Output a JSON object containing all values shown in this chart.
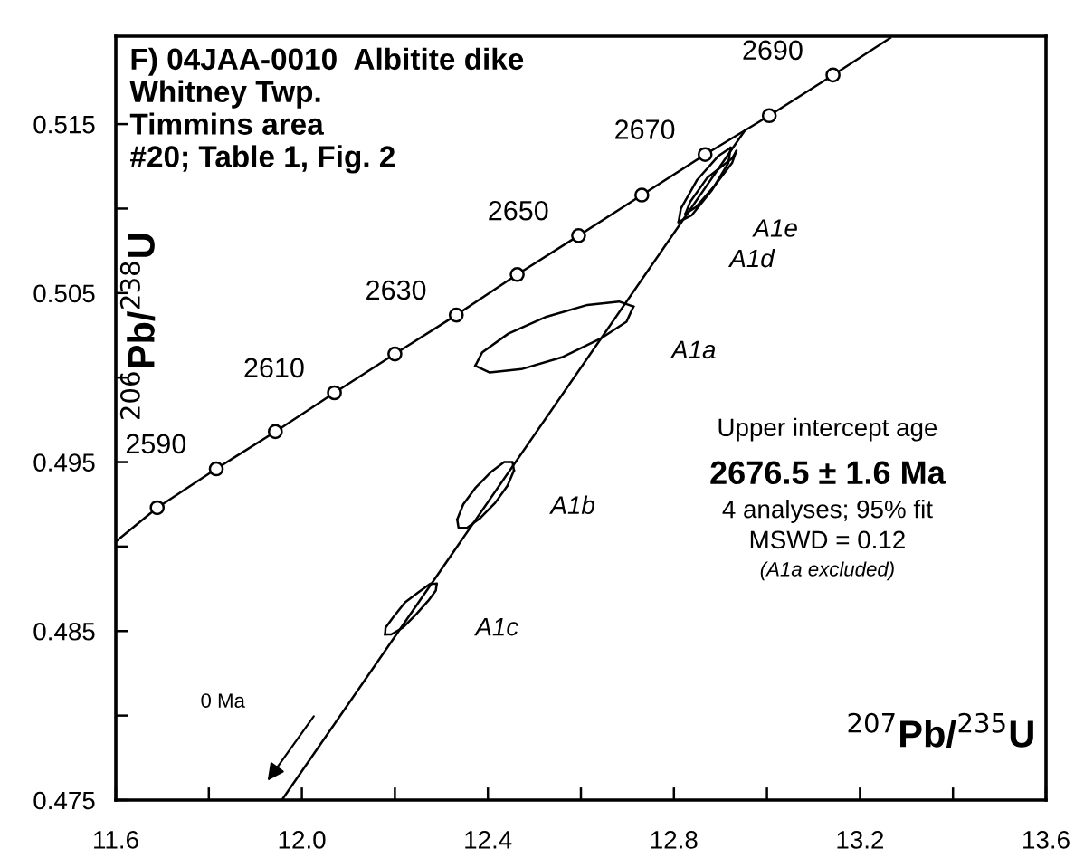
{
  "chart_data": {
    "type": "line",
    "title": "F) 04JAA-0010  Albitite dike\nWhitney Twp.\nTimmins area\n#20; Table 1, Fig. 2",
    "xlabel": "$^{207}$Pb/$^{235}$U",
    "ylabel": "$^{206}$Pb/$^{238}$U",
    "xlim": [
      11.6,
      13.6
    ],
    "ylim": [
      0.475,
      0.5202
    ],
    "xticks": [
      11.6,
      {
        "value": 11.8,
        "label": null
      },
      {
        "value": 12.0,
        "label": "12.0"
      },
      {
        "value": 12.2,
        "label": null
      },
      12.4,
      {
        "value": 12.6,
        "label": null
      },
      12.8,
      {
        "value": 13.0,
        "label": null
      },
      13.2,
      {
        "value": 13.4,
        "label": null
      },
      13.6
    ],
    "yticks": [
      0.475,
      {
        "value": 0.48,
        "label": null
      },
      0.485,
      {
        "value": 0.49,
        "label": null
      },
      0.495,
      {
        "value": 0.5,
        "label": null
      },
      0.505,
      {
        "value": 0.51,
        "label": null
      },
      0.515
    ],
    "grid": false,
    "legend": false,
    "series": [
      {
        "color": "#000000",
        "marker": "none",
        "x": [
          11.6,
          11.689,
          11.816,
          11.943,
          12.07,
          12.2,
          12.332,
          12.463,
          12.595,
          12.731,
          12.867,
          13.005,
          13.142,
          13.265
        ],
        "values": [
          0.4903,
          0.4923,
          0.4946,
          0.4968,
          0.4991,
          0.5014,
          0.5037,
          0.5061,
          0.5084,
          0.5108,
          0.5132,
          0.5155,
          0.5179,
          0.5201
        ]
      },
      {
        "type": "scatter",
        "color": "#000000",
        "marker": "circle",
        "x": [
          11.689,
          11.816,
          11.943,
          12.07,
          12.2,
          12.332,
          12.463,
          12.595,
          12.731,
          12.867,
          13.005,
          13.142
        ],
        "values": [
          0.4923,
          0.4946,
          0.4968,
          0.4991,
          0.5014,
          0.5037,
          0.5061,
          0.5084,
          0.5108,
          0.5132,
          0.5155,
          0.5179
        ]
      },
      {
        "color": "#000000",
        "marker": "none",
        "x": [
          11.957,
          12.952
        ],
        "values": [
          0.475,
          0.5146
        ]
      },
      {
        "color": "#000000",
        "marker": "none",
        "x": [
          12.373,
          12.404,
          12.472,
          12.559,
          12.642,
          12.698,
          12.713
        ],
        "values": [
          0.5007,
          0.5003,
          0.5005,
          0.5012,
          0.5023,
          0.5033,
          0.5042
        ]
      },
      {
        "color": "#000000",
        "marker": "none",
        "x": [
          12.373,
          12.388,
          12.444,
          12.526,
          12.614,
          12.682,
          12.713
        ],
        "values": [
          0.5007,
          0.5015,
          0.5026,
          0.5036,
          0.5043,
          0.5045,
          0.5042
        ]
      },
      {
        "color": "#000000",
        "marker": "none",
        "x": [
          12.334,
          12.337,
          12.355,
          12.384,
          12.416,
          12.442,
          12.456
        ],
        "values": [
          0.4916,
          0.4911,
          0.4911,
          0.4917,
          0.4926,
          0.4936,
          0.4945
        ]
      },
      {
        "color": "#000000",
        "marker": "none",
        "x": [
          12.334,
          12.347,
          12.374,
          12.406,
          12.435,
          12.453,
          12.456
        ],
        "values": [
          0.4916,
          0.4925,
          0.4935,
          0.4944,
          0.495,
          0.495,
          0.4945
        ]
      },
      {
        "color": "#000000",
        "marker": "none",
        "x": [
          12.179,
          12.192,
          12.217,
          12.246,
          12.272,
          12.288,
          12.29
        ],
        "values": [
          0.4848,
          0.4848,
          0.4852,
          0.486,
          0.4868,
          0.4874,
          0.4878
        ]
      },
      {
        "color": "#000000",
        "marker": "none",
        "x": [
          12.179,
          12.18,
          12.196,
          12.222,
          12.251,
          12.276,
          12.29
        ],
        "values": [
          0.4848,
          0.4852,
          0.4858,
          0.4867,
          0.4873,
          0.4878,
          0.4878
        ]
      },
      {
        "color": "#000000",
        "marker": "none",
        "x": [
          12.81,
          12.838,
          12.882,
          12.917,
          12.922
        ],
        "values": [
          0.5092,
          0.5096,
          0.5111,
          0.5127,
          0.5136
        ]
      },
      {
        "color": "#000000",
        "marker": "none",
        "x": [
          12.81,
          12.815,
          12.85,
          12.895,
          12.922
        ],
        "values": [
          0.5092,
          0.51,
          0.5117,
          0.5131,
          0.5136
        ]
      },
      {
        "color": "#000000",
        "marker": "none",
        "x": [
          12.825,
          12.848,
          12.889,
          12.925,
          12.934
        ],
        "values": [
          0.5097,
          0.5101,
          0.5114,
          0.5127,
          0.5134
        ]
      },
      {
        "color": "#000000",
        "marker": "none",
        "x": [
          12.825,
          12.835,
          12.871,
          12.926,
          12.934
        ],
        "values": [
          0.5097,
          0.5104,
          0.5118,
          0.513,
          0.5134
        ]
      }
    ],
    "annotations": [
      "Upper intercept age",
      "2676.5 ± 1.6 Ma",
      "4 analyses; 95% fit",
      "MSWD = 0.12",
      "(A1a excluded)",
      "0 Ma",
      {
        "text": "2590",
        "x": 11.816,
        "y": 0.4946
      },
      {
        "text": "2610",
        "x": 12.07,
        "y": 0.4991
      },
      {
        "text": "2630",
        "x": 12.332,
        "y": 0.5037
      },
      {
        "text": "2650",
        "x": 12.595,
        "y": 0.5084
      },
      {
        "text": "2670",
        "x": 12.867,
        "y": 0.5132
      },
      {
        "text": "2690",
        "x": 13.142,
        "y": 0.5179
      },
      {
        "text": "A1a",
        "x": 12.713,
        "y": 0.5042
      },
      {
        "text": "A1b",
        "x": 12.453,
        "y": 0.495
      },
      {
        "text": "A1c",
        "x": 12.29,
        "y": 0.4878
      },
      {
        "text": "A1d",
        "x": 12.838,
        "y": 0.5096
      },
      {
        "text": "A1e",
        "x": 12.889,
        "y": 0.5114
      }
    ]
  }
}
